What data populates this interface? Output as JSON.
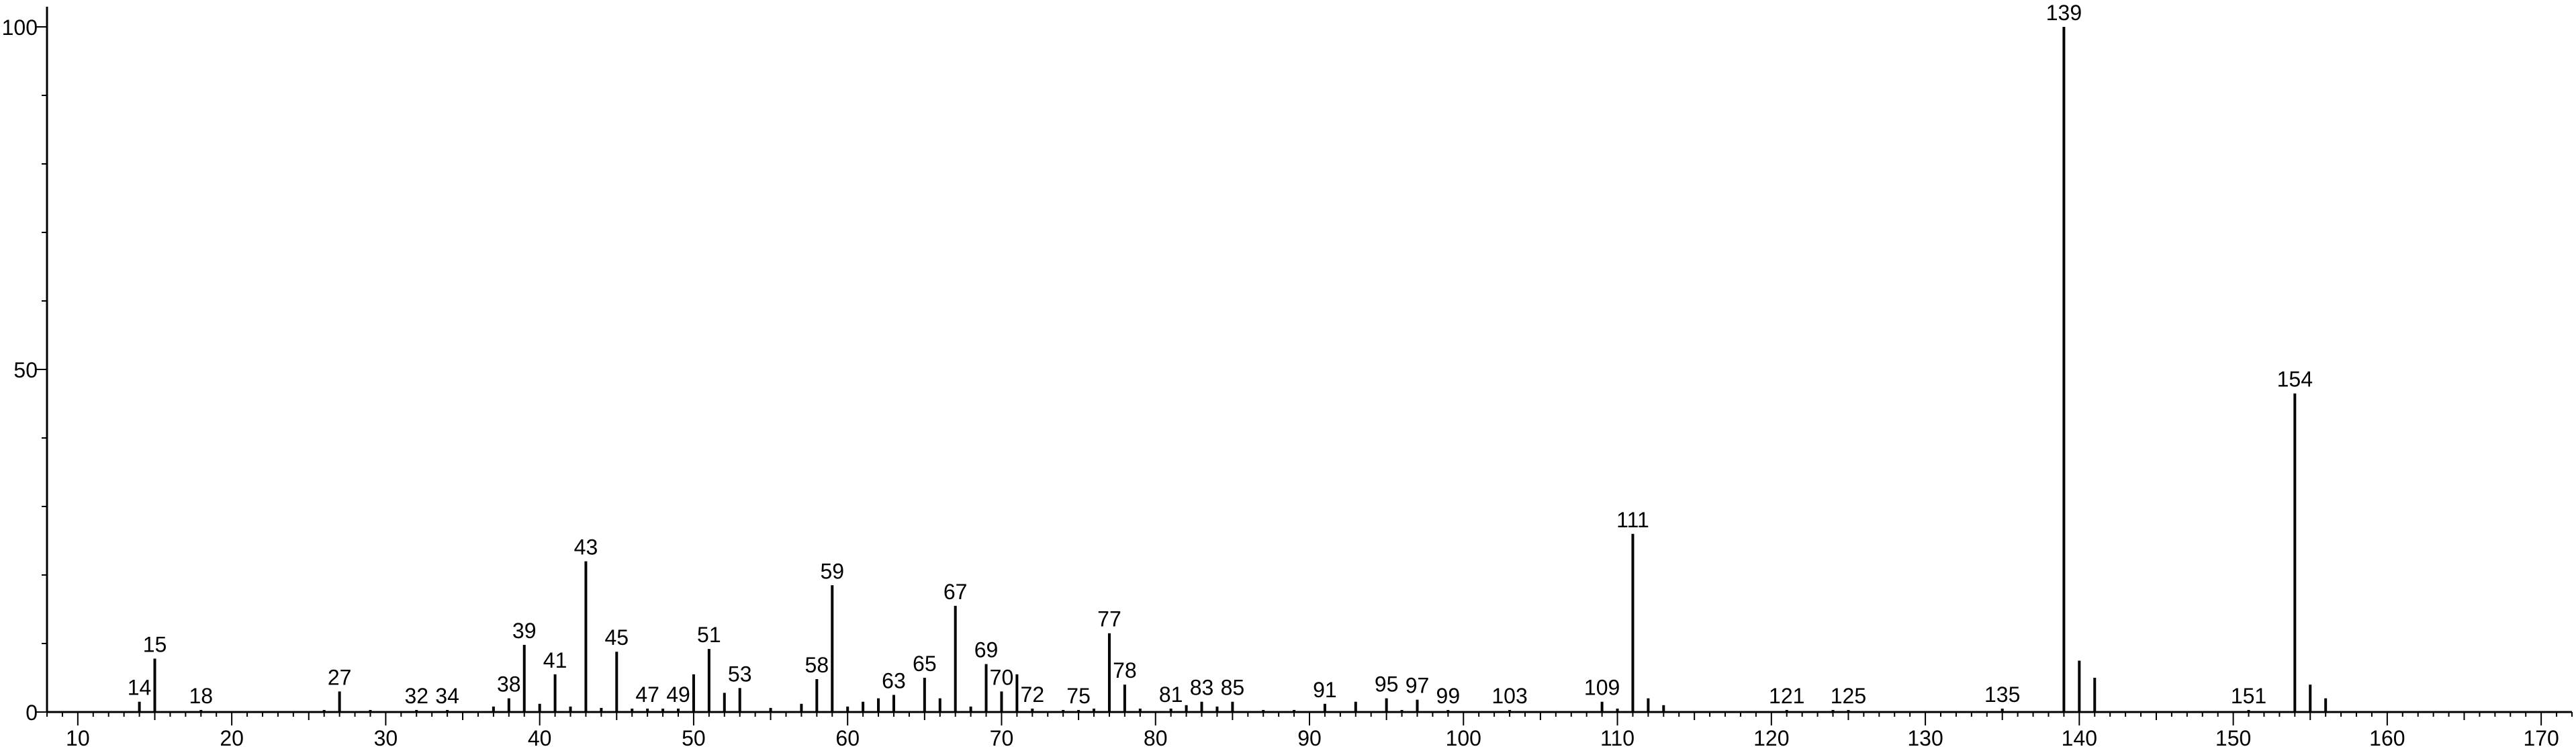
{
  "chart_data": {
    "type": "bar",
    "title": "",
    "xlabel": "",
    "ylabel": "",
    "xlim": [
      8,
      172
    ],
    "ylim": [
      0,
      100
    ],
    "x_ticks": [
      10,
      20,
      30,
      40,
      50,
      60,
      70,
      80,
      90,
      100,
      110,
      120,
      130,
      140,
      150,
      160,
      170
    ],
    "y_ticks": [
      0,
      50,
      100
    ],
    "grid": false,
    "legend": "none",
    "color": "#000000",
    "peaks": [
      {
        "x": 14,
        "y": 1.5,
        "label": "14"
      },
      {
        "x": 15,
        "y": 7.8,
        "label": "15"
      },
      {
        "x": 18,
        "y": 0.3,
        "label": "18"
      },
      {
        "x": 26,
        "y": 0.3
      },
      {
        "x": 27,
        "y": 3.0,
        "label": "27"
      },
      {
        "x": 29,
        "y": 0.3
      },
      {
        "x": 32,
        "y": 0.3,
        "label": "32"
      },
      {
        "x": 34,
        "y": 0.3,
        "label": "34"
      },
      {
        "x": 37,
        "y": 0.8
      },
      {
        "x": 38,
        "y": 2.0,
        "label": "38"
      },
      {
        "x": 39,
        "y": 9.8,
        "label": "39"
      },
      {
        "x": 40,
        "y": 1.2
      },
      {
        "x": 41,
        "y": 5.5,
        "label": "41"
      },
      {
        "x": 42,
        "y": 0.8
      },
      {
        "x": 43,
        "y": 22.0,
        "label": "43"
      },
      {
        "x": 44,
        "y": 0.6
      },
      {
        "x": 45,
        "y": 8.8,
        "label": "45"
      },
      {
        "x": 46,
        "y": 0.5
      },
      {
        "x": 47,
        "y": 0.5,
        "label": "47"
      },
      {
        "x": 48,
        "y": 0.5
      },
      {
        "x": 49,
        "y": 0.5,
        "label": "49"
      },
      {
        "x": 50,
        "y": 5.5
      },
      {
        "x": 51,
        "y": 9.2,
        "label": "51"
      },
      {
        "x": 52,
        "y": 2.8
      },
      {
        "x": 53,
        "y": 3.5,
        "label": "53"
      },
      {
        "x": 55,
        "y": 0.6
      },
      {
        "x": 57,
        "y": 1.2
      },
      {
        "x": 58,
        "y": 4.8,
        "label": "58"
      },
      {
        "x": 59,
        "y": 18.5,
        "label": "59"
      },
      {
        "x": 60,
        "y": 0.8
      },
      {
        "x": 61,
        "y": 1.5
      },
      {
        "x": 62,
        "y": 2.0
      },
      {
        "x": 63,
        "y": 2.5,
        "label": "63"
      },
      {
        "x": 65,
        "y": 5.0,
        "label": "65"
      },
      {
        "x": 66,
        "y": 2.0
      },
      {
        "x": 67,
        "y": 15.5,
        "label": "67"
      },
      {
        "x": 68,
        "y": 0.8
      },
      {
        "x": 69,
        "y": 7.0,
        "label": "69"
      },
      {
        "x": 70,
        "y": 3.0,
        "label": "70"
      },
      {
        "x": 71,
        "y": 5.5
      },
      {
        "x": 72,
        "y": 0.5,
        "label": "72"
      },
      {
        "x": 74,
        "y": 0.3
      },
      {
        "x": 75,
        "y": 0.3,
        "label": "75"
      },
      {
        "x": 76,
        "y": 0.5
      },
      {
        "x": 77,
        "y": 11.5,
        "label": "77"
      },
      {
        "x": 78,
        "y": 4.0,
        "label": "78"
      },
      {
        "x": 79,
        "y": 0.5
      },
      {
        "x": 81,
        "y": 0.5,
        "label": "81"
      },
      {
        "x": 82,
        "y": 1.0
      },
      {
        "x": 83,
        "y": 1.5,
        "label": "83"
      },
      {
        "x": 84,
        "y": 0.8
      },
      {
        "x": 85,
        "y": 1.5,
        "label": "85"
      },
      {
        "x": 87,
        "y": 0.3
      },
      {
        "x": 89,
        "y": 0.3
      },
      {
        "x": 91,
        "y": 1.2,
        "label": "91"
      },
      {
        "x": 93,
        "y": 1.5
      },
      {
        "x": 95,
        "y": 2.0,
        "label": "95"
      },
      {
        "x": 96,
        "y": 0.3
      },
      {
        "x": 97,
        "y": 1.8,
        "label": "97"
      },
      {
        "x": 99,
        "y": 0.3,
        "label": "99"
      },
      {
        "x": 103,
        "y": 0.3,
        "label": "103"
      },
      {
        "x": 109,
        "y": 1.5,
        "label": "109"
      },
      {
        "x": 110,
        "y": 0.5
      },
      {
        "x": 111,
        "y": 26.0,
        "label": "111"
      },
      {
        "x": 112,
        "y": 2.0
      },
      {
        "x": 113,
        "y": 1.0
      },
      {
        "x": 121,
        "y": 0.3,
        "label": "121"
      },
      {
        "x": 124,
        "y": 0.3
      },
      {
        "x": 125,
        "y": 0.3,
        "label": "125"
      },
      {
        "x": 135,
        "y": 0.5,
        "label": "135"
      },
      {
        "x": 139,
        "y": 100.0,
        "label": "139"
      },
      {
        "x": 140,
        "y": 7.5
      },
      {
        "x": 141,
        "y": 5.0
      },
      {
        "x": 151,
        "y": 0.3,
        "label": "151"
      },
      {
        "x": 154,
        "y": 46.5,
        "label": "154"
      },
      {
        "x": 155,
        "y": 4.0
      },
      {
        "x": 156,
        "y": 2.0
      }
    ]
  }
}
